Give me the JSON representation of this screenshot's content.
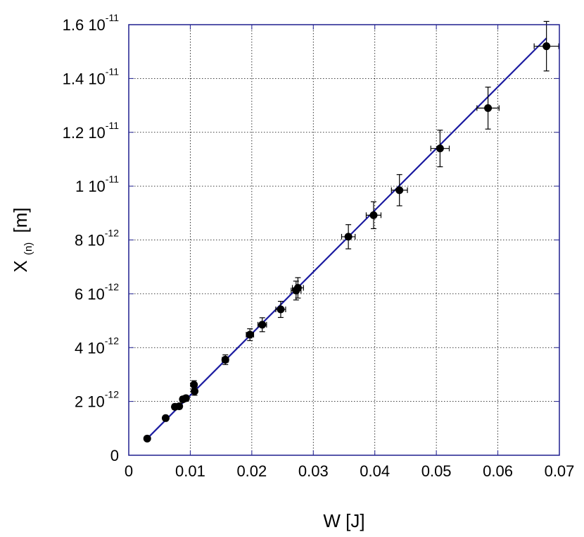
{
  "chart_data": {
    "type": "scatter",
    "title": "",
    "xlabel": "W [J]",
    "ylabel": {
      "main": "X",
      "sub": "(n)",
      "unit": "[m]"
    },
    "xlim": [
      0,
      0.07
    ],
    "ylim": [
      0,
      1.6e-11
    ],
    "grid": true,
    "x_ticks": [
      {
        "value": 0,
        "label": "0"
      },
      {
        "value": 0.01,
        "label": "0.01"
      },
      {
        "value": 0.02,
        "label": "0.02"
      },
      {
        "value": 0.03,
        "label": "0.03"
      },
      {
        "value": 0.04,
        "label": "0.04"
      },
      {
        "value": 0.05,
        "label": "0.05"
      },
      {
        "value": 0.06,
        "label": "0.06"
      },
      {
        "value": 0.07,
        "label": "0.07"
      }
    ],
    "y_ticks": [
      {
        "value": 0,
        "mantissa": "0",
        "exp": ""
      },
      {
        "value": 2e-12,
        "mantissa": "2 10",
        "exp": "-12"
      },
      {
        "value": 4e-12,
        "mantissa": "4 10",
        "exp": "-12"
      },
      {
        "value": 6e-12,
        "mantissa": "6 10",
        "exp": "-12"
      },
      {
        "value": 8e-12,
        "mantissa": "8 10",
        "exp": "-12"
      },
      {
        "value": 1e-11,
        "mantissa": "1 10",
        "exp": "-11"
      },
      {
        "value": 1.2e-11,
        "mantissa": "1.2 10",
        "exp": "-11"
      },
      {
        "value": 1.4e-11,
        "mantissa": "1.4 10",
        "exp": "-11"
      },
      {
        "value": 1.6e-11,
        "mantissa": "1.6 10",
        "exp": "-11"
      }
    ],
    "points": [
      {
        "x": 0.003,
        "y": 6.2e-13,
        "xerr": 0.0002,
        "yerr": 5e-14
      },
      {
        "x": 0.006,
        "y": 1.38e-12,
        "xerr": 0.0002,
        "yerr": 8e-14
      },
      {
        "x": 0.0075,
        "y": 1.8e-12,
        "xerr": 0.0003,
        "yerr": 1e-13
      },
      {
        "x": 0.0082,
        "y": 1.82e-12,
        "xerr": 0.0003,
        "yerr": 1e-13
      },
      {
        "x": 0.0088,
        "y": 2.08e-12,
        "xerr": 0.0003,
        "yerr": 1e-13
      },
      {
        "x": 0.0093,
        "y": 2.12e-12,
        "xerr": 0.0003,
        "yerr": 1e-13
      },
      {
        "x": 0.0106,
        "y": 2.62e-12,
        "xerr": 0.0003,
        "yerr": 1.5e-13
      },
      {
        "x": 0.0107,
        "y": 2.38e-12,
        "xerr": 0.0003,
        "yerr": 1.5e-13
      },
      {
        "x": 0.0157,
        "y": 3.55e-12,
        "xerr": 0.0005,
        "yerr": 1.8e-13
      },
      {
        "x": 0.0197,
        "y": 4.48e-12,
        "xerr": 0.0006,
        "yerr": 2.2e-13
      },
      {
        "x": 0.0217,
        "y": 4.85e-12,
        "xerr": 0.0007,
        "yerr": 2.6e-13
      },
      {
        "x": 0.0247,
        "y": 5.42e-12,
        "xerr": 0.0008,
        "yerr": 3e-13
      },
      {
        "x": 0.0272,
        "y": 6.12e-12,
        "xerr": 0.0008,
        "yerr": 3.5e-13
      },
      {
        "x": 0.0275,
        "y": 6.22e-12,
        "xerr": 0.0009,
        "yerr": 3.8e-13
      },
      {
        "x": 0.0357,
        "y": 8.12e-12,
        "xerr": 0.0011,
        "yerr": 4.5e-13
      },
      {
        "x": 0.0398,
        "y": 8.92e-12,
        "xerr": 0.0012,
        "yerr": 5e-13
      },
      {
        "x": 0.044,
        "y": 9.85e-12,
        "xerr": 0.0013,
        "yerr": 5.8e-13
      },
      {
        "x": 0.0506,
        "y": 1.14e-11,
        "xerr": 0.0015,
        "yerr": 6.8e-13
      },
      {
        "x": 0.0584,
        "y": 1.29e-11,
        "xerr": 0.0018,
        "yerr": 7.8e-13
      },
      {
        "x": 0.0679,
        "y": 1.52e-11,
        "xerr": 0.002,
        "yerr": 9.2e-13
      }
    ],
    "fit_line": {
      "x": [
        0.003,
        0.0679
      ],
      "y": [
        6.2e-13,
        1.55e-11
      ]
    },
    "colors": {
      "frame": "#1f1f8f",
      "fit": "#1a1aa0",
      "grid": "#000000",
      "points": "#000000"
    }
  }
}
